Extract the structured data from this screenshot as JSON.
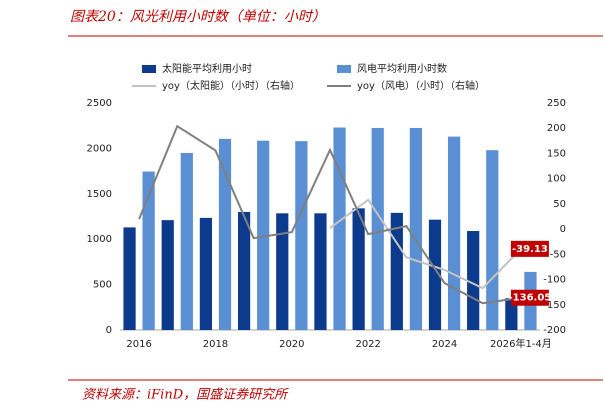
{
  "chart_data": {
    "type": "bar",
    "title": "图表20：风光利用小时数（单位：小时）",
    "source": "资料来源：iFinD，国盛证券研究所",
    "categories": [
      "2016",
      null,
      "2018",
      null,
      "2020",
      null,
      "2022",
      null,
      "2024",
      null,
      "2026年1-4月"
    ],
    "series": [
      {
        "name": "太阳能平均利用小时",
        "type": "bar",
        "color": "#0c3b8e",
        "values": [
          1130,
          1210,
          1235,
          1300,
          1285,
          1285,
          1340,
          1290,
          1215,
          1090,
          350
        ]
      },
      {
        "name": "风电平均利用小时数",
        "type": "bar",
        "color": "#5b8fd4",
        "values": [
          1745,
          1950,
          2105,
          2085,
          2080,
          2230,
          2225,
          2225,
          2130,
          1980,
          640
        ]
      },
      {
        "name": "yoy（太阳能）（小时）（右轴）",
        "type": "line",
        "axis": "y2",
        "color": "#c3c3c3",
        "values": [
          null,
          null,
          null,
          null,
          null,
          2,
          58,
          -56,
          -81,
          -117,
          -39.13
        ]
      },
      {
        "name": "yoy（风电）（小时）（右轴）",
        "type": "line",
        "axis": "y2",
        "color": "#7f7f7f",
        "values": [
          20,
          204,
          156,
          -18,
          -6,
          157,
          -10,
          6,
          -107,
          -147,
          -136.05
        ]
      }
    ],
    "ylim": [
      0,
      2500
    ],
    "yticks": [
      0,
      500,
      1000,
      1500,
      2000,
      2500
    ],
    "y2lim": [
      -200,
      250
    ],
    "y2ticks": [
      -200,
      -150,
      -100,
      -50,
      0,
      50,
      100,
      150,
      200,
      250
    ],
    "label_color": "#c00000"
  }
}
